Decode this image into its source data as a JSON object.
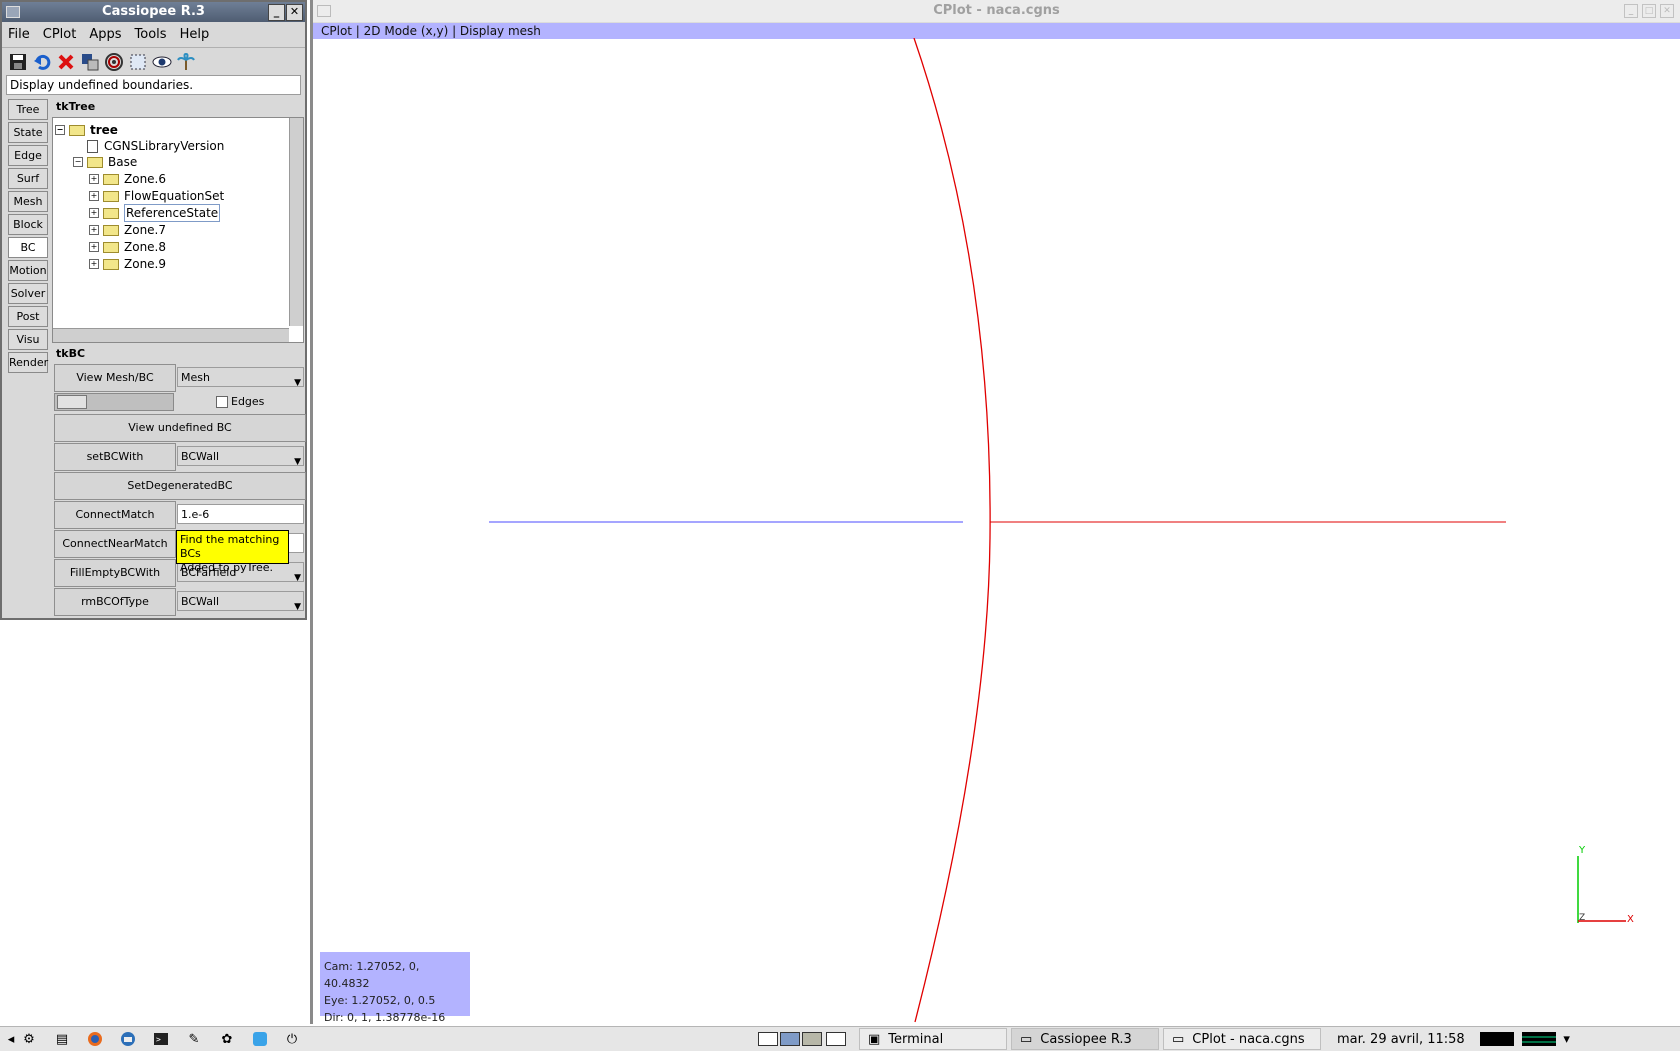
{
  "cassiopee": {
    "title": "Cassiopee R.3",
    "menu": [
      "File",
      "CPlot",
      "Apps",
      "Tools",
      "Help"
    ],
    "status": "Display undefined boundaries.",
    "side_tabs": [
      "Tree",
      "State",
      "Edge",
      "Surf",
      "Mesh",
      "Block",
      "BC",
      "Motion",
      "Solver",
      "Post",
      "Visu",
      "Render"
    ],
    "active_tab": "BC",
    "tktree": {
      "label": "tkTree",
      "nodes": [
        "tree",
        "CGNSLibraryVersion",
        "Base",
        "Zone.6",
        "FlowEquationSet",
        "ReferenceState",
        "Zone.7",
        "Zone.8",
        "Zone.9"
      ]
    },
    "tkbc": {
      "label": "tkBC",
      "view_mesh_bc": "View Mesh/BC",
      "view_mode": "Mesh",
      "edges_label": "Edges",
      "view_undefined": "View undefined BC",
      "set_bc_with": "setBCWith",
      "set_bc_type": "BCWall",
      "set_degenerated": "SetDegeneratedBC",
      "connect_match": "ConnectMatch",
      "connect_tol": "1.e-6",
      "connect_near_match": "ConnectNearMatch",
      "tooltip_line1": "Find the matching BCs",
      "tooltip_line2": "Added to pyTree.",
      "fill_empty": "FillEmptyBCWith",
      "fill_type": "BCFarfield",
      "rm_bc_of_type": "rmBCOfType",
      "rm_type": "BCWall"
    }
  },
  "cplot": {
    "title": "CPlot - naca.cgns",
    "mode_bar": "CPlot | 2D Mode (x,y) | Display mesh",
    "cam": "Cam: 1.27052, 0, 40.4832",
    "eye": "Eye: 1.27052, 0, 0.5",
    "dir": "Dir: 0, 1, 1.38778e-16",
    "axis_y": "Y",
    "axis_x": "X",
    "axis_z": "Z"
  },
  "taskbar": {
    "tasks": [
      "Terminal",
      "Cassiopee R.3",
      "CPlot - naca.cgns"
    ],
    "clock": "mar. 29 avril, 11:58"
  },
  "colors": {
    "mode_bar": "#b3b3ff",
    "curve": "#e00000",
    "blue_line": "#4b4bff",
    "tooltip": "#ffff00"
  }
}
